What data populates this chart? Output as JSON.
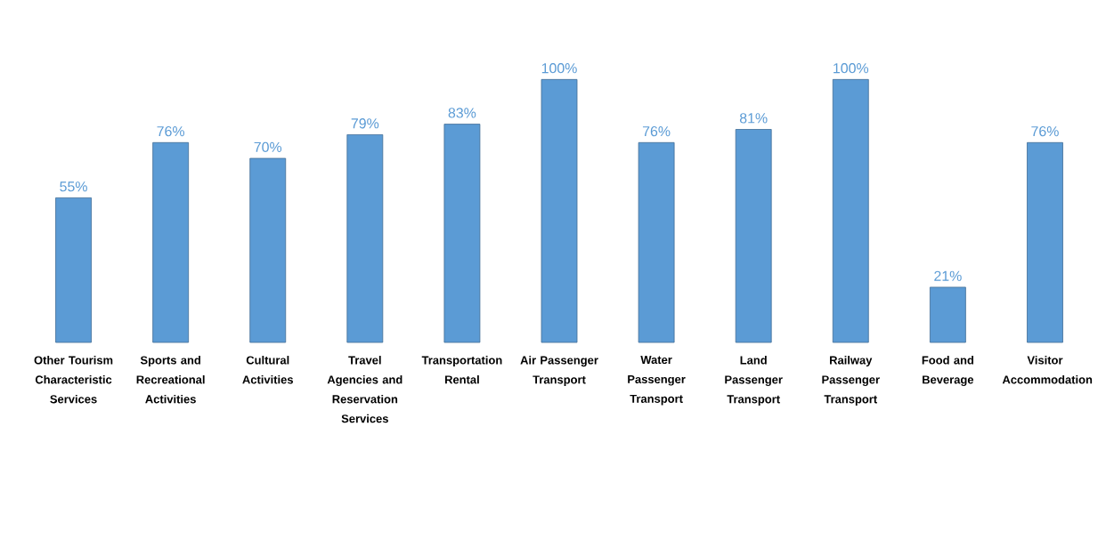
{
  "chart_data": {
    "type": "bar",
    "categories": [
      "Other Tourism Characteristic Services",
      "Sports and Recreational Activities",
      "Cultural Activities",
      "Travel Agencies and Reservation Services",
      "Transportation Rental",
      "Air Passenger Transport",
      "Water Passenger Transport",
      "Land Passenger Transport",
      "Railway Passenger Transport",
      "Food and Beverage",
      "Visitor Accommodation"
    ],
    "values": [
      55,
      76,
      70,
      79,
      83,
      100,
      76,
      81,
      100,
      21,
      76
    ],
    "value_labels": [
      "55%",
      "76%",
      "70%",
      "79%",
      "83%",
      "100%",
      "76%",
      "81%",
      "100%",
      "21%",
      "76%"
    ],
    "color": "#5b9bd5"
  }
}
